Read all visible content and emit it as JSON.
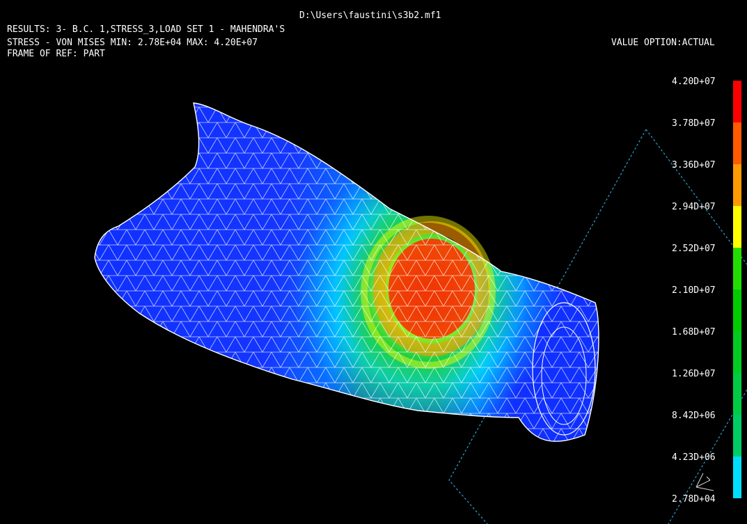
{
  "header": {
    "file_path": "D:\\Users\\faustini\\s3b2.mf1",
    "results_line": "RESULTS: 3- B.C. 1,STRESS_3,LOAD SET 1 - MAHENDRA'S",
    "stress_line": "STRESS - VON MISES MIN: 2.78E+04 MAX: 4.20E+07",
    "frame_line": "FRAME OF REF: PART",
    "value_option": "VALUE OPTION:ACTUAL"
  },
  "legend": {
    "labels": [
      "4.20D+07",
      "3.78D+07",
      "3.36D+07",
      "2.94D+07",
      "2.52D+07",
      "2.10D+07",
      "1.68D+07",
      "1.26D+07",
      "8.42D+06",
      "4.23D+06",
      "2.78D+04"
    ],
    "colors": [
      "#ff0000",
      "#ff5a00",
      "#ff9a00",
      "#ffff00",
      "#22dd00",
      "#00cc00",
      "#00cc22",
      "#00cc44",
      "#00cc66",
      "#00ddff",
      "#0022ff"
    ]
  },
  "model": {
    "colors": {
      "low": "#1030ff",
      "cyan": "#00ccff",
      "green": "#20d040",
      "yellow": "#ffff00",
      "orange": "#ff8800",
      "red": "#ff2a00",
      "mesh": "#ffffff",
      "plane": "#2aa0d0"
    }
  }
}
